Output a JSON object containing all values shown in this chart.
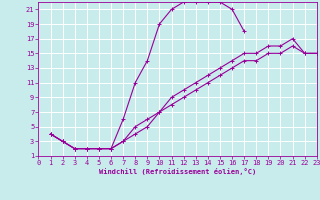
{
  "xlabel": "Windchill (Refroidissement éolien,°C)",
  "bg_color": "#c8ecec",
  "line_color": "#990099",
  "grid_color": "#ffffff",
  "xlim": [
    0,
    23
  ],
  "ylim": [
    1,
    22
  ],
  "xticks": [
    0,
    1,
    2,
    3,
    4,
    5,
    6,
    7,
    8,
    9,
    10,
    11,
    12,
    13,
    14,
    15,
    16,
    17,
    18,
    19,
    20,
    21,
    22,
    23
  ],
  "yticks": [
    1,
    3,
    5,
    7,
    9,
    11,
    13,
    15,
    17,
    19,
    21
  ],
  "curve1_x": [
    1,
    2,
    3,
    4,
    5,
    6,
    7,
    8,
    9,
    10,
    11,
    12,
    13,
    14,
    15,
    16,
    17
  ],
  "curve1_y": [
    4,
    3,
    2,
    2,
    2,
    2,
    6,
    11,
    14,
    19,
    21,
    22,
    22,
    22,
    22,
    21,
    18
  ],
  "curve2_x": [
    1,
    2,
    3,
    4,
    5,
    6,
    7,
    8,
    9,
    10,
    11,
    12,
    13,
    14,
    15,
    16,
    17,
    18,
    19,
    20,
    21,
    22,
    23
  ],
  "curve2_y": [
    4,
    3,
    2,
    2,
    2,
    2,
    3,
    4,
    5,
    7,
    8,
    9,
    10,
    11,
    12,
    13,
    14,
    14,
    15,
    15,
    16,
    15,
    15
  ],
  "curve3_x": [
    1,
    2,
    3,
    4,
    5,
    6,
    7,
    8,
    9,
    10,
    11,
    12,
    13,
    14,
    15,
    16,
    17,
    18,
    19,
    20,
    21,
    22,
    23
  ],
  "curve3_y": [
    4,
    3,
    2,
    2,
    2,
    2,
    3,
    5,
    6,
    7,
    9,
    10,
    11,
    12,
    13,
    14,
    15,
    15,
    16,
    16,
    17,
    15,
    15
  ],
  "marker": "+",
  "markersize": 3,
  "linewidth": 0.8,
  "xlabel_fontsize": 5,
  "tick_fontsize": 5
}
